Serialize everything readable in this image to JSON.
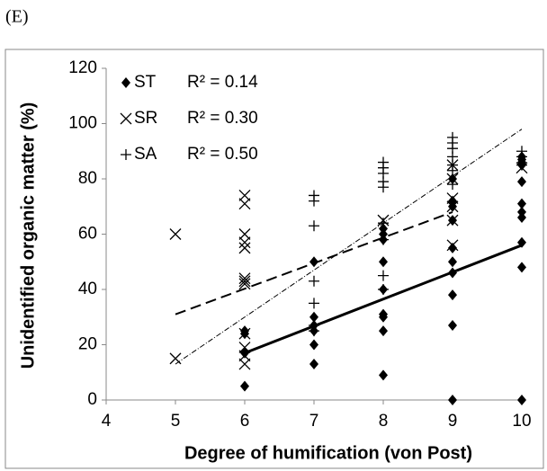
{
  "chart_data": {
    "type": "scatter",
    "panel_label": "(E)",
    "x_label": "Degree of humification (von Post)",
    "y_label": "Unidentified organic matter (%)",
    "xlim": [
      4,
      10
    ],
    "xticks": [
      4,
      5,
      6,
      7,
      8,
      9,
      10
    ],
    "ylim": [
      0,
      120
    ],
    "yticks": [
      0,
      20,
      40,
      60,
      80,
      100,
      120
    ],
    "grid": false,
    "series": [
      {
        "name": "ST",
        "color": "#000000",
        "marker": "diamond",
        "x": [
          6,
          6,
          6,
          6,
          7,
          7,
          7,
          7,
          7,
          7,
          8,
          8,
          8,
          8,
          8,
          8,
          8,
          8,
          8,
          9,
          9,
          9,
          9,
          9,
          9,
          9,
          9,
          9,
          9,
          10,
          10,
          10,
          10,
          10,
          10,
          10,
          10,
          10,
          10,
          10
        ],
        "values": [
          25,
          24,
          17,
          5,
          50,
          30,
          27,
          25,
          20,
          13,
          62,
          60,
          58,
          50,
          40,
          31,
          30,
          25,
          9,
          80,
          72,
          70,
          65,
          55,
          50,
          46,
          38,
          27,
          0,
          88,
          87,
          86,
          85,
          79,
          71,
          68,
          66,
          57,
          48,
          0
        ],
        "trend": {
          "style": "solid",
          "x": [
            6,
            10
          ],
          "values": [
            17,
            56
          ],
          "r2_label": "R² = 0.14"
        }
      },
      {
        "name": "SR",
        "color": "#000000",
        "marker": "x",
        "x": [
          5,
          5,
          6,
          6,
          6,
          6,
          6,
          6,
          6,
          6,
          6,
          6,
          6,
          6,
          8,
          9,
          9,
          9,
          9,
          9,
          9,
          10
        ],
        "values": [
          60,
          15,
          74,
          71,
          60,
          57,
          55,
          44,
          43,
          42,
          24,
          19,
          16,
          13,
          65,
          85,
          80,
          73,
          70,
          65,
          56,
          84
        ],
        "trend": {
          "style": "dashed",
          "x": [
            5,
            9
          ],
          "values": [
            31,
            68
          ],
          "r2_label": "R² = 0.30"
        }
      },
      {
        "name": "SA",
        "color": "#000000",
        "marker": "plus",
        "x": [
          7,
          7,
          7,
          7,
          7,
          7,
          7,
          8,
          8,
          8,
          8,
          8,
          8,
          8,
          8,
          8,
          9,
          9,
          9,
          9,
          9,
          9,
          9,
          10,
          10,
          10
        ],
        "values": [
          74,
          72,
          63,
          43,
          35,
          27,
          25,
          86,
          84,
          82,
          79,
          77,
          64,
          58,
          45,
          40,
          95,
          93,
          91,
          88,
          85,
          83,
          78,
          90,
          88,
          85
        ],
        "trend": {
          "style": "dashdot",
          "x": [
            5,
            10
          ],
          "values": [
            13,
            98
          ],
          "r2_label": "R² = 0.50"
        }
      }
    ]
  }
}
